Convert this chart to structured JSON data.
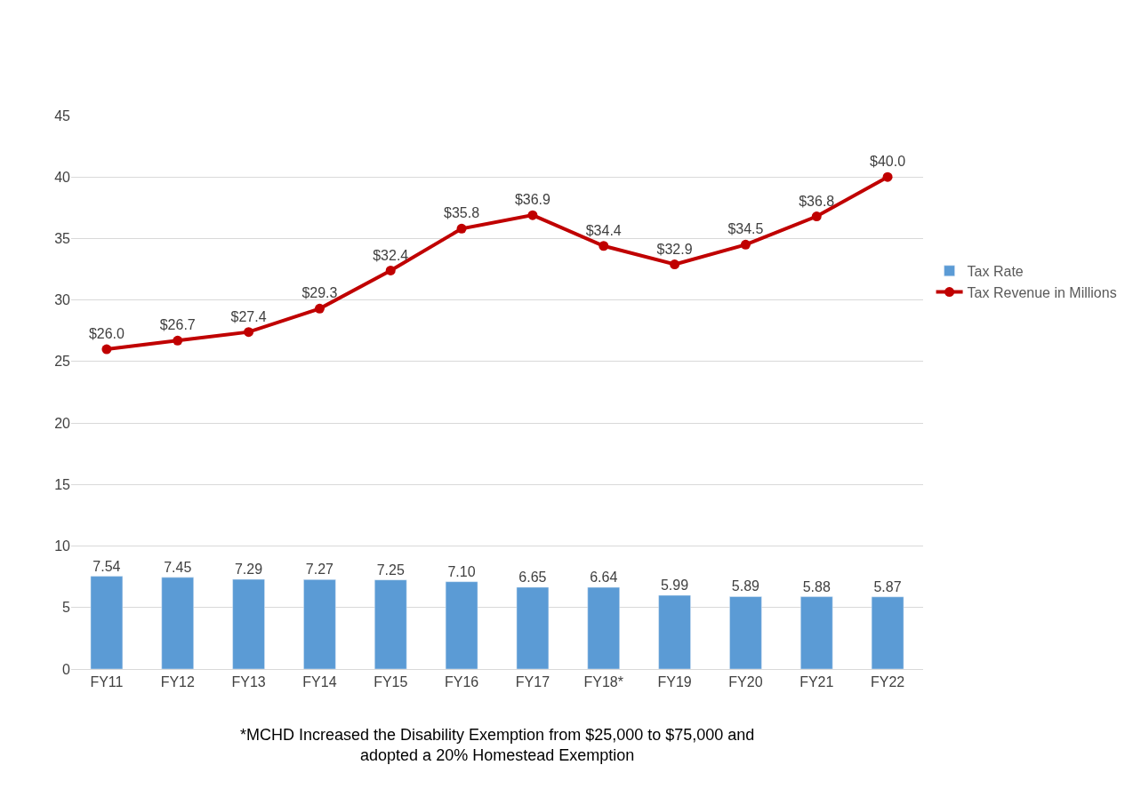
{
  "chart_data": {
    "type": "bar",
    "categories": [
      "FY11",
      "FY12",
      "FY13",
      "FY14",
      "FY15",
      "FY16",
      "FY17",
      "FY18*",
      "FY19",
      "FY20",
      "FY21",
      "FY22"
    ],
    "series": [
      {
        "name": "Tax Rate",
        "color": "#5b9bd5",
        "values": [
          7.54,
          7.45,
          7.29,
          7.27,
          7.25,
          7.1,
          6.65,
          6.64,
          5.99,
          5.89,
          5.88,
          5.87
        ],
        "value_labels": [
          "7.54",
          "7.45",
          "7.29",
          "7.27",
          "7.25",
          "7.10",
          "6.65",
          "6.64",
          "5.99",
          "5.89",
          "5.88",
          "5.87"
        ]
      },
      {
        "name": "Tax Revenue in Millions",
        "type": "line",
        "color": "#c00000",
        "marker": "circle",
        "values": [
          26.0,
          26.7,
          27.4,
          29.3,
          32.4,
          35.8,
          36.9,
          34.4,
          32.9,
          34.5,
          36.8,
          40.0
        ],
        "value_labels": [
          "$26.0",
          "$26.7",
          "$27.4",
          "$29.3",
          "$32.4",
          "$35.8",
          "$36.9",
          "$34.4",
          "$32.9",
          "$34.5",
          "$36.8",
          "$40.0"
        ]
      }
    ],
    "ylim": [
      0,
      45
    ],
    "yticks": [
      0,
      5,
      10,
      15,
      20,
      25,
      30,
      35,
      40,
      45
    ],
    "grid": "y",
    "legend": "right",
    "annotations": [
      "*MCHD Increased the Disability Exemption from $25,000 to $75,000 and\nadopted a 20% Homestead Exemption"
    ]
  }
}
